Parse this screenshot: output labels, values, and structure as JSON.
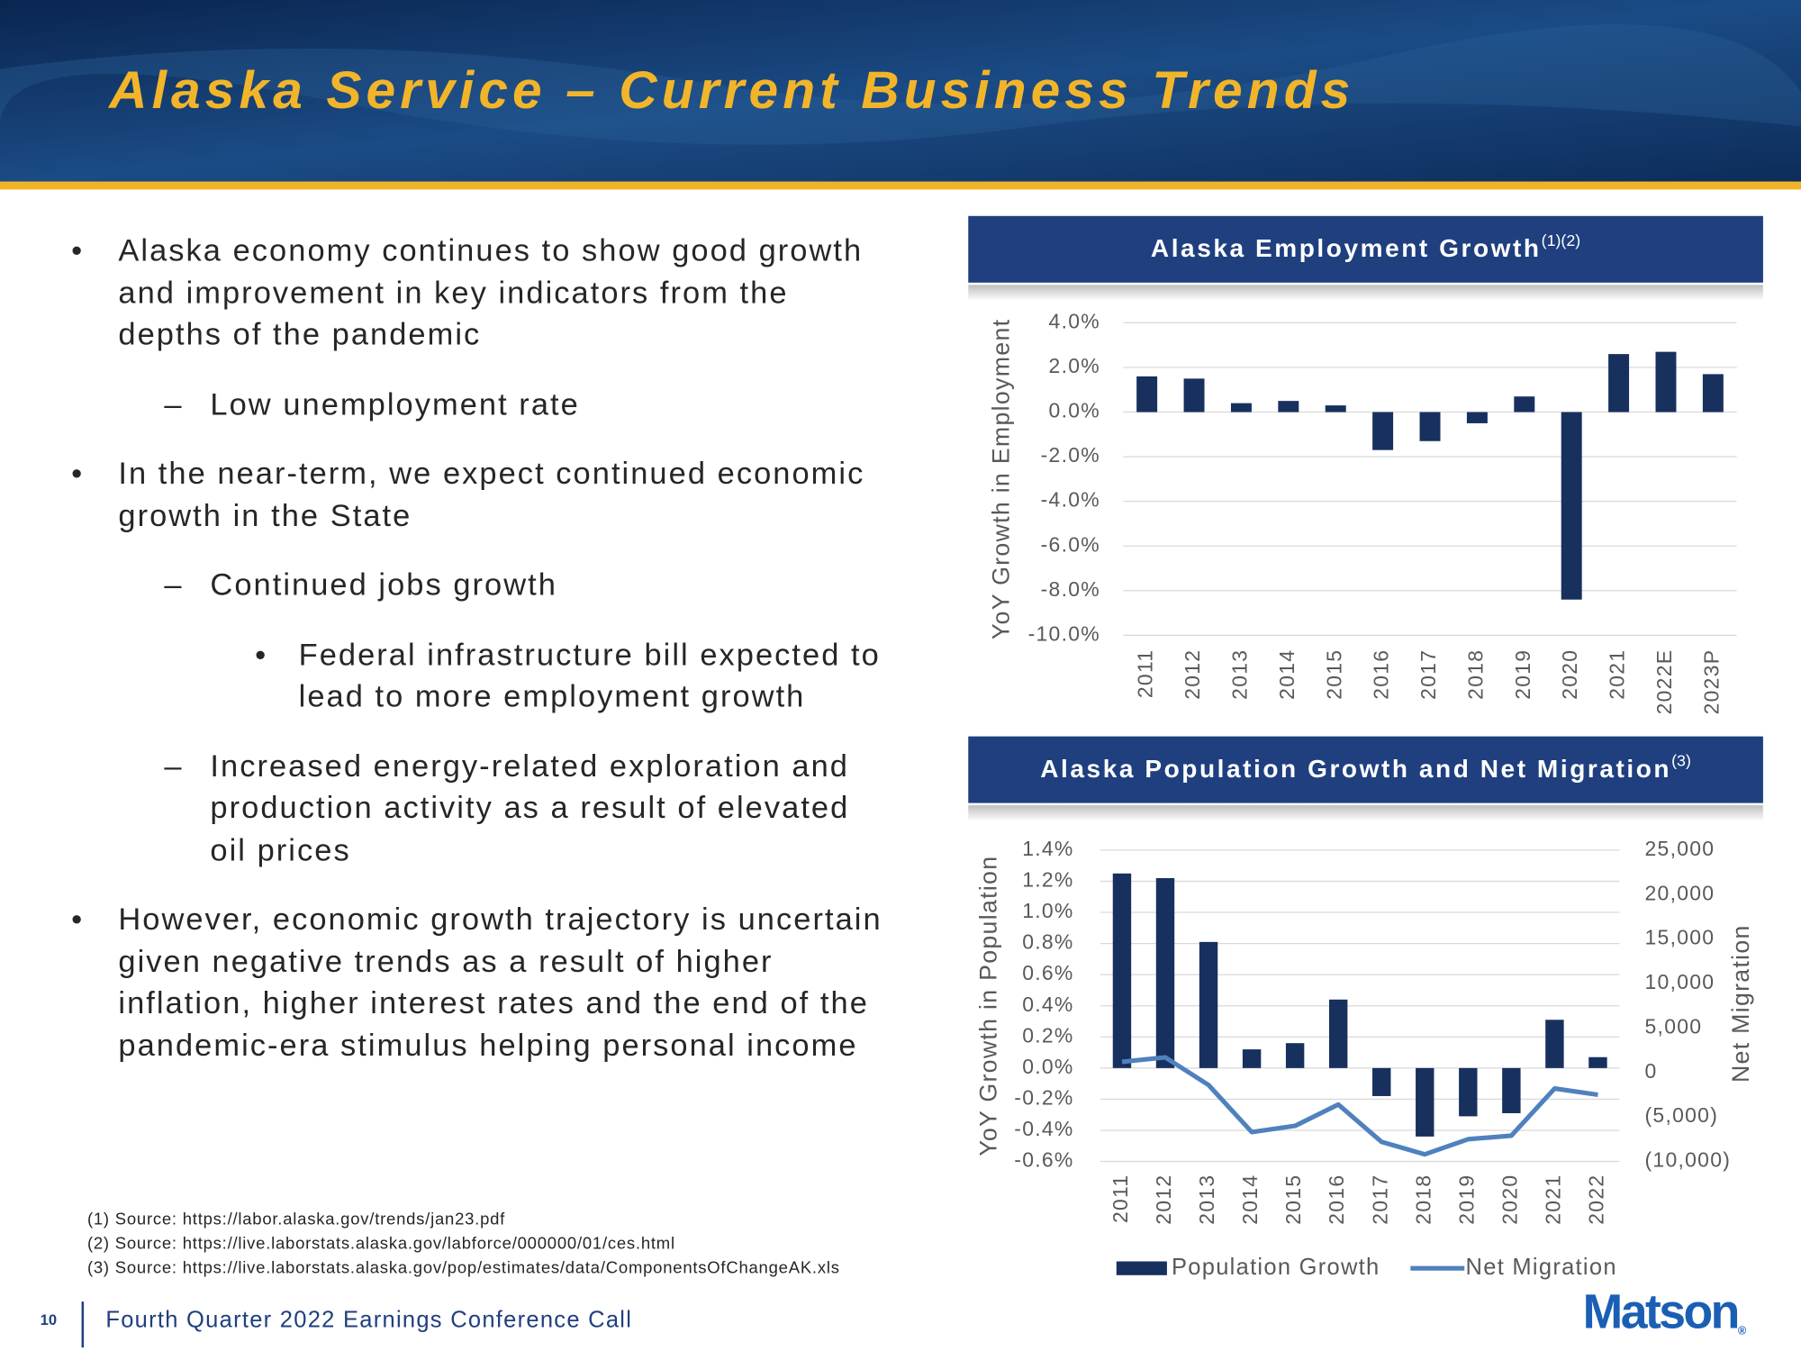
{
  "slide": {
    "title": "Alaska Service – Current Business Trends",
    "bullets": [
      {
        "text": "Alaska economy continues to show good growth and improvement in key indicators from the depths of the pandemic",
        "sub": [
          {
            "text": "Low unemployment rate"
          }
        ]
      },
      {
        "text": "In the near-term, we expect continued economic growth in the State",
        "sub": [
          {
            "text": "Continued jobs growth",
            "sub": [
              {
                "text": "Federal infrastructure bill expected to lead to more employment growth"
              }
            ]
          },
          {
            "text": "Increased energy-related exploration and production activity as a result of elevated oil prices"
          }
        ]
      },
      {
        "text": "However, economic growth trajectory is uncertain given negative trends as a result of higher inflation, higher interest rates and the end of the pandemic-era stimulus helping personal income"
      }
    ],
    "footnotes": [
      "(1)  Source: https://labor.alaska.gov/trends/jan23.pdf",
      "(2)  Source: https://live.laborstats.alaska.gov/labforce/000000/01/ces.html",
      "(3)  Source: https://live.laborstats.alaska.gov/pop/estimates/data/ComponentsOfChangeAK.xls"
    ],
    "page_number": 10,
    "footer": "Fourth Quarter 2022 Earnings Conference Call",
    "logo": "Matson",
    "logo_mark": "®"
  },
  "chart_data": [
    {
      "type": "bar",
      "title": "Alaska Employment Growth",
      "title_note": "(1)(2)",
      "y_label": "YoY Growth in Employment",
      "categories": [
        "2011",
        "2012",
        "2013",
        "2014",
        "2015",
        "2016",
        "2017",
        "2018",
        "2019",
        "2020",
        "2021",
        "2022E",
        "2023P"
      ],
      "values": [
        1.6,
        1.5,
        0.4,
        0.5,
        0.3,
        -1.7,
        -1.3,
        -0.5,
        0.7,
        -8.4,
        2.6,
        2.7,
        1.7
      ],
      "color": "#17305e",
      "ylim": [
        -10,
        4
      ],
      "yticks": [
        {
          "value": -10,
          "label": "-10.0%"
        },
        {
          "value": -8,
          "label": "-8.0%"
        },
        {
          "value": -6,
          "label": "-6.0%"
        },
        {
          "value": -4,
          "label": "-4.0%"
        },
        {
          "value": -2,
          "label": "-2.0%"
        },
        {
          "value": 0,
          "label": "0.0%"
        },
        {
          "value": 2,
          "label": "2.0%"
        },
        {
          "value": 4,
          "label": "4.0%"
        }
      ],
      "grid": true
    },
    {
      "type": "combo",
      "title": "Alaska Population Growth and Net Migration",
      "title_note": "(3)",
      "y_label": "YoY Growth in Population",
      "y2_label": "Net Migration",
      "categories": [
        "2011",
        "2012",
        "2013",
        "2014",
        "2015",
        "2016",
        "2017",
        "2018",
        "2019",
        "2020",
        "2021",
        "2022"
      ],
      "series": [
        {
          "name": "Population Growth",
          "type": "bar",
          "color": "#17305e",
          "values": [
            1.25,
            1.22,
            0.81,
            0.12,
            0.16,
            0.44,
            -0.18,
            -0.44,
            -0.31,
            -0.29,
            0.31,
            0.07
          ]
        },
        {
          "name": "Net Migration",
          "type": "line",
          "axis": "y2",
          "color": "#4f81bd",
          "values": [
            1200,
            1700,
            -1400,
            -6700,
            -6000,
            -3600,
            -7800,
            -9200,
            -7500,
            -7100,
            -1800,
            -2500
          ]
        }
      ],
      "ylim": [
        -0.6,
        1.4
      ],
      "yticks": [
        {
          "value": -0.6,
          "label": "-0.6%"
        },
        {
          "value": -0.4,
          "label": "-0.4%"
        },
        {
          "value": -0.2,
          "label": "-0.2%"
        },
        {
          "value": 0,
          "label": "0.0%"
        },
        {
          "value": 0.2,
          "label": "0.2%"
        },
        {
          "value": 0.4,
          "label": "0.4%"
        },
        {
          "value": 0.6,
          "label": "0.6%"
        },
        {
          "value": 0.8,
          "label": "0.8%"
        },
        {
          "value": 1.0,
          "label": "1.0%"
        },
        {
          "value": 1.2,
          "label": "1.2%"
        },
        {
          "value": 1.4,
          "label": "1.4%"
        }
      ],
      "y2lim": [
        -10000,
        25000
      ],
      "y2ticks": [
        {
          "value": -10000,
          "label": "(10,000)"
        },
        {
          "value": -5000,
          "label": "(5,000)"
        },
        0,
        {
          "value": 5000,
          "label": "5,000"
        },
        {
          "value": 10000,
          "label": "10,000"
        },
        {
          "value": 15000,
          "label": "15,000"
        },
        {
          "value": 20000,
          "label": "20,000"
        },
        {
          "value": 25000,
          "label": "25,000"
        }
      ],
      "grid": true,
      "legend": "bottom"
    }
  ]
}
